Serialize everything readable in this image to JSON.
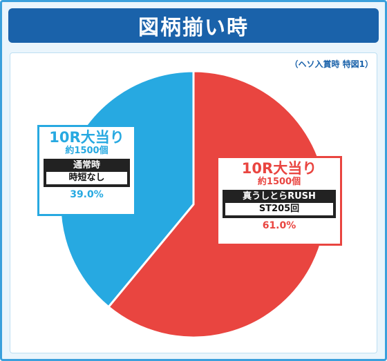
{
  "title": "図柄揃い時",
  "note": "（ヘソ入賞時 特図1）",
  "colors": {
    "red": "#e94540",
    "blue": "#27a9e1",
    "frame": "#3aa0dc",
    "title_bg": "#1a62aa"
  },
  "chart_data": {
    "type": "pie",
    "title": "図柄揃い時",
    "slices": [
      {
        "label": "10R大当り",
        "award": "約1500個",
        "mode": "真うしとらRUSH",
        "mode_detail": "ST205回",
        "value": 61.0,
        "pct_label": "61.0%",
        "color": "#e94540"
      },
      {
        "label": "10R大当り",
        "award": "約1500個",
        "mode": "通常時",
        "mode_detail": "時短なし",
        "value": 39.0,
        "pct_label": "39.0%",
        "color": "#27a9e1"
      }
    ]
  }
}
